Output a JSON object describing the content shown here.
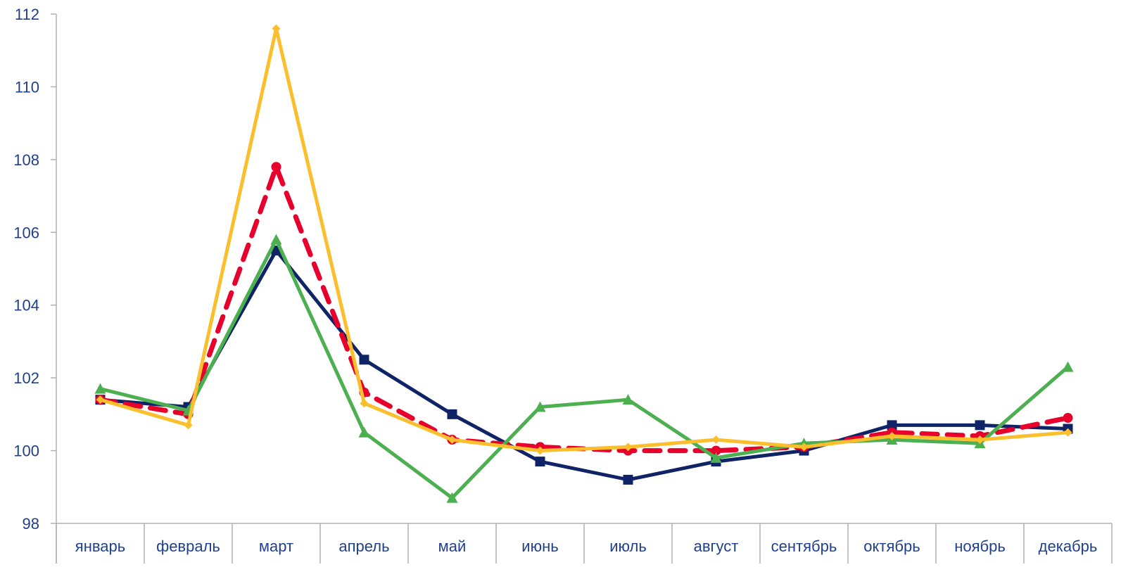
{
  "chart_data": {
    "type": "line",
    "title": "",
    "xlabel": "",
    "ylabel": "",
    "categories": [
      "январь",
      "февраль",
      "март",
      "апрель",
      "май",
      "июнь",
      "июль",
      "август",
      "сентябрь",
      "октябрь",
      "ноябрь",
      "декабрь"
    ],
    "ylim": [
      98,
      112
    ],
    "yticks": [
      "98",
      "100",
      "102",
      "104",
      "106",
      "108",
      "110",
      "112"
    ],
    "grid": false,
    "legend": "none",
    "series": [
      {
        "color": "#0f2366",
        "marker": "square",
        "dashed": false,
        "values": [
          101.4,
          101.2,
          105.5,
          102.5,
          101.0,
          99.7,
          99.2,
          99.7,
          100.0,
          100.7,
          100.7,
          100.6
        ]
      },
      {
        "color": "#e8002d",
        "marker": "circle",
        "dashed": true,
        "values": [
          101.4,
          101.0,
          107.8,
          101.6,
          100.3,
          100.1,
          100.0,
          100.0,
          100.1,
          100.5,
          100.4,
          100.9
        ]
      },
      {
        "color": "#4caf50",
        "marker": "triangle",
        "dashed": false,
        "values": [
          101.7,
          101.1,
          105.8,
          100.5,
          98.7,
          101.2,
          101.4,
          99.8,
          100.2,
          100.3,
          100.2,
          102.3
        ]
      },
      {
        "color": "#fbbf2d",
        "marker": "diamond",
        "dashed": false,
        "values": [
          101.4,
          100.7,
          111.6,
          101.3,
          100.3,
          100.0,
          100.1,
          100.3,
          100.1,
          100.4,
          100.3,
          100.5
        ]
      }
    ]
  }
}
